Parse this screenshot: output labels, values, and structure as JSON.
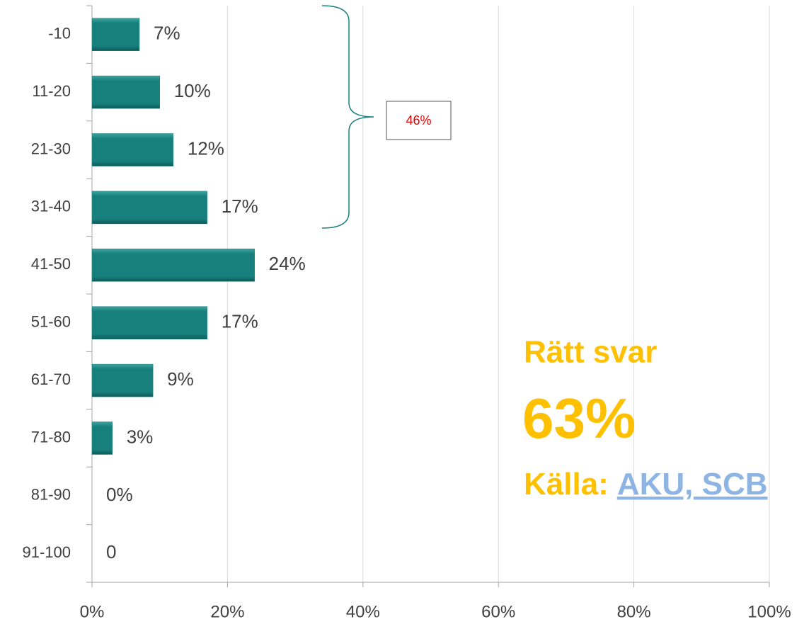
{
  "chart_data": {
    "type": "bar",
    "orientation": "horizontal",
    "categories": [
      "-10",
      "11-20",
      "21-30",
      "31-40",
      "41-50",
      "51-60",
      "61-70",
      "71-80",
      "81-90",
      "91-100"
    ],
    "values": [
      7,
      10,
      12,
      17,
      24,
      17,
      9,
      3,
      0,
      0
    ],
    "value_labels": [
      "7%",
      "10%",
      "12%",
      "17%",
      "24%",
      "17%",
      "9%",
      "3%",
      "0%",
      "0"
    ],
    "color": "#17807d",
    "xlim": [
      0,
      100
    ],
    "xticks": [
      {
        "value": 0,
        "label": "0%"
      },
      {
        "value": 20,
        "label": "20%"
      },
      {
        "value": 40,
        "label": "40%"
      },
      {
        "value": 60,
        "label": "60%"
      },
      {
        "value": 80,
        "label": "80%"
      },
      {
        "value": 100,
        "label": "100%"
      }
    ],
    "grid": true,
    "annotations": {
      "bracket_label": "46%",
      "answer_title": "Rätt svar",
      "answer_value": "63%",
      "source_label": "Källa:",
      "source_link": "AKU, SCB"
    }
  }
}
